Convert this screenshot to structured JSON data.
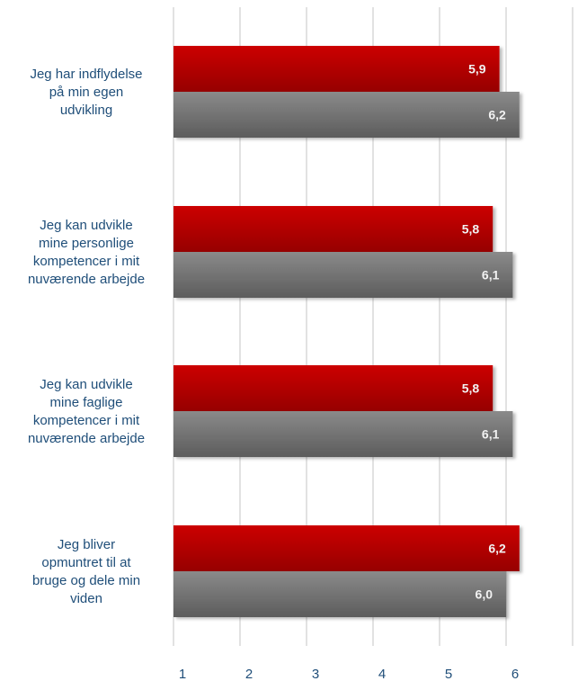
{
  "chart_data": {
    "type": "bar",
    "orientation": "horizontal",
    "categories": [
      [
        "Jeg har indflydelse",
        "på min egen",
        "udvikling"
      ],
      [
        "Jeg kan udvikle",
        "mine personlige",
        "kompetencer i mit",
        "nuværende arbejde"
      ],
      [
        "Jeg kan udvikle",
        "mine faglige",
        "kompetencer i mit",
        "nuværende arbejde"
      ],
      [
        "Jeg bliver",
        "opmuntret til at",
        "bruge og dele min",
        "viden"
      ]
    ],
    "series": [
      {
        "values": [
          5.9,
          5.8,
          5.8,
          6.2
        ],
        "labels": [
          "5,9",
          "5,8",
          "5,8",
          "6,2"
        ]
      },
      {
        "values": [
          6.2,
          6.1,
          6.1,
          6.0
        ],
        "labels": [
          "6,2",
          "6,1",
          "6,1",
          "6,0"
        ]
      }
    ],
    "xlim": [
      1,
      7
    ],
    "xticks": [
      1,
      2,
      3,
      4,
      5,
      6,
      7
    ],
    "grid": true,
    "legend": "none",
    "colors": {
      "series_1_top": "#cc0000",
      "series_1_bottom": "#960000",
      "series_2_top": "#8a8a8a",
      "series_2_bottom": "#5c5c5c",
      "category_text": "#1f4e79",
      "tick_text": "#1f4e79",
      "value_label_text": "#f2f2f2",
      "gridline": "#d9d9d9"
    }
  }
}
